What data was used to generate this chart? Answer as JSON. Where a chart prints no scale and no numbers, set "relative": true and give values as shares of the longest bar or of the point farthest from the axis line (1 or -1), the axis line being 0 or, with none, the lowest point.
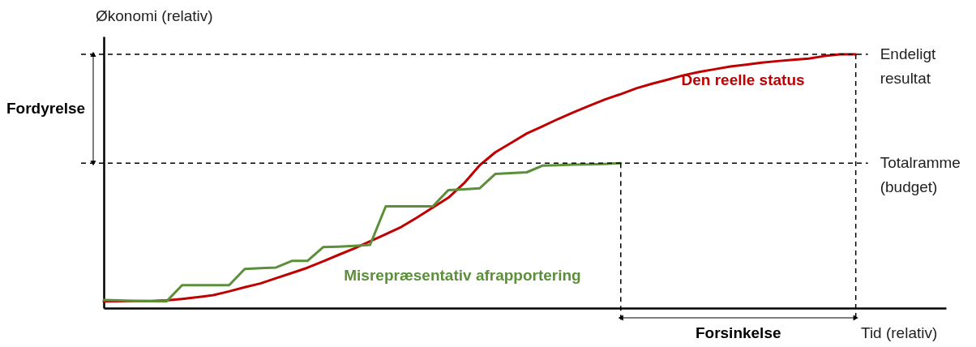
{
  "chart_data": {
    "type": "line",
    "relative": true,
    "xlabel": "Tid (relativ)",
    "ylabel": "Økonomi (relativ)",
    "tick_labels": false,
    "grid": false,
    "legend": false,
    "marker": "none",
    "line_style": "solid",
    "categories": [
      null,
      null,
      null,
      null,
      null,
      null,
      null,
      null,
      null,
      null,
      null,
      null,
      null,
      null,
      null,
      null,
      null,
      null,
      null,
      null,
      null,
      null,
      null,
      null,
      null,
      null,
      null,
      null,
      null,
      null,
      null,
      null,
      null,
      null,
      null,
      null,
      null,
      null,
      null,
      null,
      null,
      null,
      null,
      null,
      null,
      null,
      null,
      null,
      null
    ],
    "series": [
      {
        "name": "Den reelle status",
        "color": "#c00000",
        "values": [
          0.026,
          0.027,
          0.028,
          0.028,
          0.03,
          0.036,
          0.043,
          0.051,
          0.066,
          0.082,
          0.097,
          0.118,
          0.138,
          0.159,
          0.184,
          0.21,
          0.235,
          0.263,
          0.291,
          0.32,
          0.357,
          0.396,
          0.435,
          0.492,
          0.563,
          0.614,
          0.651,
          0.688,
          0.716,
          0.745,
          0.772,
          0.797,
          0.822,
          0.843,
          0.866,
          0.884,
          0.9,
          0.917,
          0.93,
          0.941,
          0.952,
          0.959,
          0.967,
          0.973,
          0.978,
          0.983,
          0.993,
          1,
          1
        ]
      },
      {
        "name": "Misrepræsentativ afrapportering",
        "color": "#5b8f3a",
        "values": [
          0.032,
          0.03,
          0.028,
          0.027,
          0.026,
          0.09,
          0.09,
          0.09,
          0.09,
          0.154,
          0.157,
          0.16,
          0.186,
          0.186,
          0.24,
          0.242,
          0.245,
          0.249,
          0.401,
          0.401,
          0.401,
          0.401,
          0.465,
          0.468,
          0.472,
          0.529,
          0.532,
          0.535,
          0.561,
          0.563,
          0.565,
          0.566,
          0.568,
          0.571,
          null,
          null,
          null,
          null,
          null,
          null,
          null,
          null,
          null,
          null,
          null,
          null,
          null,
          null,
          null
        ]
      }
    ],
    "ref_lines": [
      {
        "axis": "y",
        "value": 1,
        "label": "Endeligt resultat",
        "color": "#000000",
        "line_style": "dashed"
      },
      {
        "axis": "y",
        "value": 0.571,
        "label": "Totalramme (budget)",
        "color": "#000000",
        "line_style": "dashed"
      }
    ],
    "annotations": [
      "Fordyrelse",
      "Forsinkelse"
    ]
  }
}
